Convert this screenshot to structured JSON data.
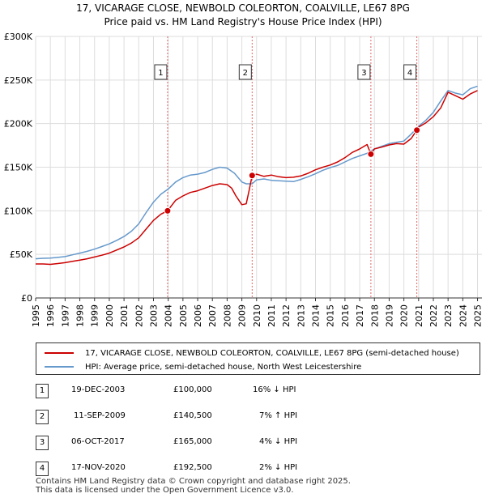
{
  "title": {
    "line1": "17, VICARAGE CLOSE, NEWBOLD COLEORTON, COALVILLE, LE67 8PG",
    "line2": "Price paid vs. HM Land Registry's House Price Index (HPI)"
  },
  "colors": {
    "property": "#cc0000",
    "hpi": "#6699cc",
    "shade": "#dde6f5",
    "vline": "#e06666"
  },
  "chart_data": {
    "type": "line",
    "title": "17, VICARAGE CLOSE, NEWBOLD COLEORTON, COALVILLE, LE67 8PG — Price paid vs. HM Land Registry's House Price Index (HPI)",
    "xlim": [
      1995,
      2025.3
    ],
    "ylim": [
      0,
      300000
    ],
    "y_ticks": [
      {
        "value": 0,
        "label": "£0"
      },
      {
        "value": 50000,
        "label": "£50K"
      },
      {
        "value": 100000,
        "label": "£100K"
      },
      {
        "value": 150000,
        "label": "£150K"
      },
      {
        "value": 200000,
        "label": "£200K"
      },
      {
        "value": 250000,
        "label": "£250K"
      },
      {
        "value": 300000,
        "label": "£300K"
      }
    ],
    "x_ticks": [
      "1995",
      "1996",
      "1997",
      "1998",
      "1999",
      "2000",
      "2001",
      "2002",
      "2003",
      "2004",
      "2005",
      "2006",
      "2007",
      "2008",
      "2009",
      "2010",
      "2011",
      "2012",
      "2013",
      "2014",
      "2015",
      "2016",
      "2017",
      "2018",
      "2019",
      "2020",
      "2021",
      "2022",
      "2023",
      "2024",
      "2025"
    ],
    "grid": true,
    "shaded_ranges": [
      [
        2003.96,
        2009.7
      ],
      [
        2017.76,
        2020.88
      ]
    ],
    "series": [
      {
        "name": "17, VICARAGE CLOSE, NEWBOLD COLEORTON, COALVILLE, LE67 8PG (semi-detached house)",
        "x": [
          1995.0,
          1995.5,
          1996.0,
          1996.5,
          1997.0,
          1997.5,
          1998.0,
          1998.5,
          1999.0,
          1999.5,
          2000.0,
          2000.5,
          2001.0,
          2001.5,
          2002.0,
          2002.5,
          2003.0,
          2003.5,
          2003.96,
          2004.5,
          2005.0,
          2005.5,
          2006.0,
          2006.5,
          2007.0,
          2007.5,
          2008.0,
          2008.3,
          2008.6,
          2009.0,
          2009.3,
          2009.5,
          2009.7,
          2010.0,
          2010.5,
          2011.0,
          2011.5,
          2012.0,
          2012.5,
          2013.0,
          2013.5,
          2014.0,
          2014.5,
          2015.0,
          2015.5,
          2016.0,
          2016.5,
          2017.0,
          2017.5,
          2017.76,
          2018.0,
          2018.5,
          2019.0,
          2019.5,
          2020.0,
          2020.5,
          2020.88,
          2021.0,
          2021.5,
          2022.0,
          2022.5,
          2023.0,
          2023.5,
          2024.0,
          2024.5,
          2025.0
        ],
        "values": [
          39000,
          39000,
          38500,
          39500,
          40500,
          42000,
          43500,
          45000,
          47000,
          49000,
          51500,
          55000,
          58500,
          63000,
          69000,
          79000,
          89000,
          96000,
          100000,
          112000,
          117000,
          121000,
          123000,
          126000,
          129000,
          131000,
          130000,
          126000,
          117000,
          107000,
          108000,
          124000,
          140500,
          142000,
          139500,
          141000,
          139000,
          138000,
          138500,
          140000,
          143000,
          147000,
          150000,
          152500,
          156000,
          161000,
          167000,
          171000,
          176000,
          165000,
          171000,
          173000,
          175500,
          177000,
          176500,
          183000,
          192500,
          196000,
          201000,
          208000,
          218000,
          236000,
          232000,
          228000,
          234000,
          238000
        ]
      },
      {
        "name": "HPI: Average price, semi-detached house, North West Leicestershire",
        "x": [
          1995.0,
          1995.5,
          1996.0,
          1996.5,
          1997.0,
          1997.5,
          1998.0,
          1998.5,
          1999.0,
          1999.5,
          2000.0,
          2000.5,
          2001.0,
          2001.5,
          2002.0,
          2002.5,
          2003.0,
          2003.5,
          2004.0,
          2004.5,
          2005.0,
          2005.5,
          2006.0,
          2006.5,
          2007.0,
          2007.5,
          2008.0,
          2008.5,
          2009.0,
          2009.3,
          2009.7,
          2010.0,
          2010.5,
          2011.0,
          2011.5,
          2012.0,
          2012.5,
          2013.0,
          2013.5,
          2014.0,
          2014.5,
          2015.0,
          2015.5,
          2016.0,
          2016.5,
          2017.0,
          2017.5,
          2018.0,
          2018.5,
          2019.0,
          2019.5,
          2020.0,
          2020.5,
          2021.0,
          2021.5,
          2022.0,
          2022.5,
          2023.0,
          2023.5,
          2024.0,
          2024.5,
          2025.0
        ],
        "values": [
          45000,
          45500,
          45800,
          46500,
          47500,
          49500,
          51500,
          53500,
          56000,
          59000,
          62000,
          66000,
          70500,
          76500,
          85000,
          98000,
          110000,
          119000,
          125000,
          133000,
          138000,
          141000,
          142000,
          144000,
          147500,
          150000,
          149000,
          143000,
          133000,
          131000,
          131000,
          135500,
          136500,
          135000,
          134500,
          134000,
          133500,
          136000,
          139000,
          142500,
          146500,
          149500,
          152000,
          156000,
          160000,
          163000,
          166000,
          171000,
          174000,
          177000,
          178500,
          180000,
          188000,
          197000,
          204000,
          213000,
          226000,
          238000,
          235000,
          233000,
          240000,
          243000
        ]
      }
    ],
    "annotations": [
      {
        "label": "1",
        "x": 2003.96,
        "price": 100000
      },
      {
        "label": "2",
        "x": 2009.7,
        "price": 140500
      },
      {
        "label": "3",
        "x": 2017.76,
        "price": 165000
      },
      {
        "label": "4",
        "x": 2020.88,
        "price": 192500
      }
    ]
  },
  "legend": {
    "property_label": "17, VICARAGE CLOSE, NEWBOLD COLEORTON, COALVILLE, LE67 8PG (semi-detached house)",
    "hpi_label": "HPI: Average price, semi-detached house, North West Leicestershire"
  },
  "transactions": [
    {
      "num": "1",
      "date": "19-DEC-2003",
      "price": "£100,000",
      "hpi": "16% ↓ HPI"
    },
    {
      "num": "2",
      "date": "11-SEP-2009",
      "price": "£140,500",
      "hpi": "7% ↑ HPI"
    },
    {
      "num": "3",
      "date": "06-OCT-2017",
      "price": "£165,000",
      "hpi": "4% ↓ HPI"
    },
    {
      "num": "4",
      "date": "17-NOV-2020",
      "price": "£192,500",
      "hpi": "2% ↓ HPI"
    }
  ],
  "footer": {
    "line1": "Contains HM Land Registry data © Crown copyright and database right 2025.",
    "line2": "This data is licensed under the Open Government Licence v3.0."
  }
}
